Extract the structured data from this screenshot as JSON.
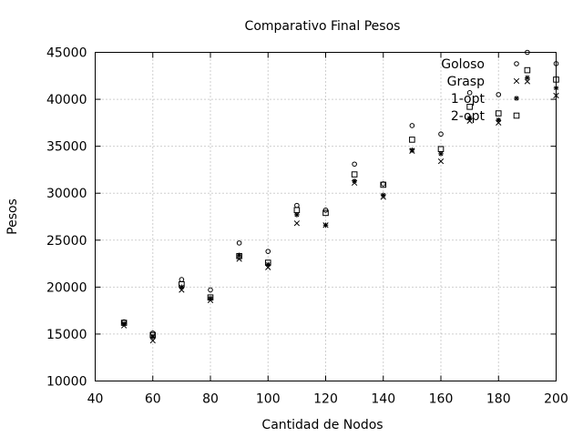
{
  "chart_data": {
    "type": "scatter",
    "title": "Comparativo Final Pesos",
    "xlabel": "Cantidad de Nodos",
    "ylabel": "Pesos",
    "xlim": [
      40,
      200
    ],
    "ylim": [
      10000,
      45000
    ],
    "xticks": [
      40,
      60,
      80,
      100,
      120,
      140,
      160,
      180,
      200
    ],
    "yticks": [
      10000,
      15000,
      20000,
      25000,
      30000,
      35000,
      40000,
      45000
    ],
    "grid": true,
    "legend": "top-right",
    "series": [
      {
        "name": "Goloso",
        "marker": "circle",
        "points": [
          [
            50,
            16300
          ],
          [
            60,
            15100
          ],
          [
            70,
            20800
          ],
          [
            80,
            19700
          ],
          [
            90,
            24700
          ],
          [
            100,
            23800
          ],
          [
            110,
            28700
          ],
          [
            120,
            28200
          ],
          [
            130,
            33100
          ],
          [
            140,
            31000
          ],
          [
            150,
            37200
          ],
          [
            160,
            36300
          ],
          [
            170,
            40700
          ],
          [
            180,
            40500
          ],
          [
            190,
            45000
          ],
          [
            200,
            43800
          ]
        ]
      },
      {
        "name": "Grasp",
        "marker": "x",
        "points": [
          [
            50,
            15900
          ],
          [
            60,
            14300
          ],
          [
            70,
            19700
          ],
          [
            80,
            18600
          ],
          [
            90,
            23000
          ],
          [
            100,
            22100
          ],
          [
            110,
            26800
          ],
          [
            120,
            26600
          ],
          [
            130,
            31100
          ],
          [
            140,
            29600
          ],
          [
            150,
            34500
          ],
          [
            160,
            33400
          ],
          [
            170,
            37700
          ],
          [
            180,
            37500
          ],
          [
            190,
            41900
          ],
          [
            200,
            40400
          ]
        ]
      },
      {
        "name": "1-opt",
        "marker": "star",
        "points": [
          [
            50,
            16100
          ],
          [
            60,
            14700
          ],
          [
            70,
            20000
          ],
          [
            80,
            18800
          ],
          [
            90,
            23400
          ],
          [
            100,
            22400
          ],
          [
            110,
            27700
          ],
          [
            120,
            26600
          ],
          [
            130,
            31300
          ],
          [
            140,
            29800
          ],
          [
            150,
            34600
          ],
          [
            160,
            34200
          ],
          [
            170,
            38000
          ],
          [
            180,
            37800
          ],
          [
            190,
            42300
          ],
          [
            200,
            41200
          ]
        ]
      },
      {
        "name": "2-opt",
        "marker": "square",
        "points": [
          [
            50,
            16200
          ],
          [
            60,
            14900
          ],
          [
            70,
            20300
          ],
          [
            80,
            18900
          ],
          [
            90,
            23300
          ],
          [
            100,
            22600
          ],
          [
            110,
            28200
          ],
          [
            120,
            27900
          ],
          [
            130,
            32000
          ],
          [
            140,
            30900
          ],
          [
            150,
            35700
          ],
          [
            160,
            34700
          ],
          [
            170,
            39200
          ],
          [
            180,
            38500
          ],
          [
            190,
            43100
          ],
          [
            200,
            42100
          ]
        ]
      }
    ]
  }
}
